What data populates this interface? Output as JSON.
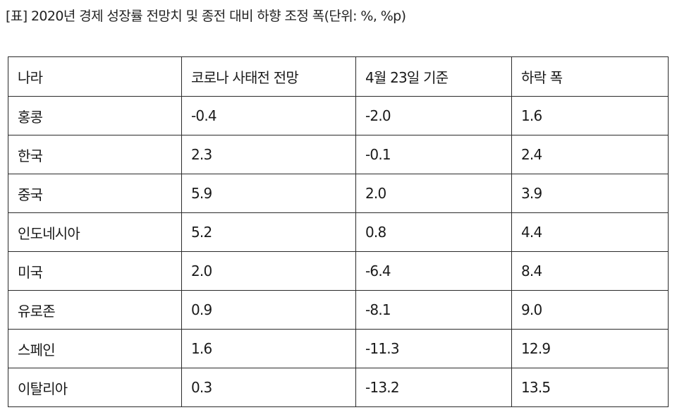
{
  "caption": "[표] 2020년 경제 성장률 전망치 및 종전 대비 하향 조정 폭(단위: %, %p)",
  "table": {
    "headers": [
      "나라",
      "코로나 사태전 전망",
      "4월 23일 기준",
      "하락 폭"
    ],
    "rows": [
      [
        "홍콩",
        "-0.4",
        "-2.0",
        "1.6"
      ],
      [
        "한국",
        "2.3",
        "-0.1",
        "2.4"
      ],
      [
        "중국",
        "5.9",
        "2.0",
        "3.9"
      ],
      [
        "인도네시아",
        "5.2",
        "0.8",
        "4.4"
      ],
      [
        "미국",
        "2.0",
        "-6.4",
        "8.4"
      ],
      [
        "유로존",
        "0.9",
        "-8.1",
        "9.0"
      ],
      [
        "스페인",
        "1.6",
        "-11.3",
        "12.9"
      ],
      [
        "이탈리아",
        "0.3",
        "-13.2",
        "13.5"
      ]
    ]
  }
}
